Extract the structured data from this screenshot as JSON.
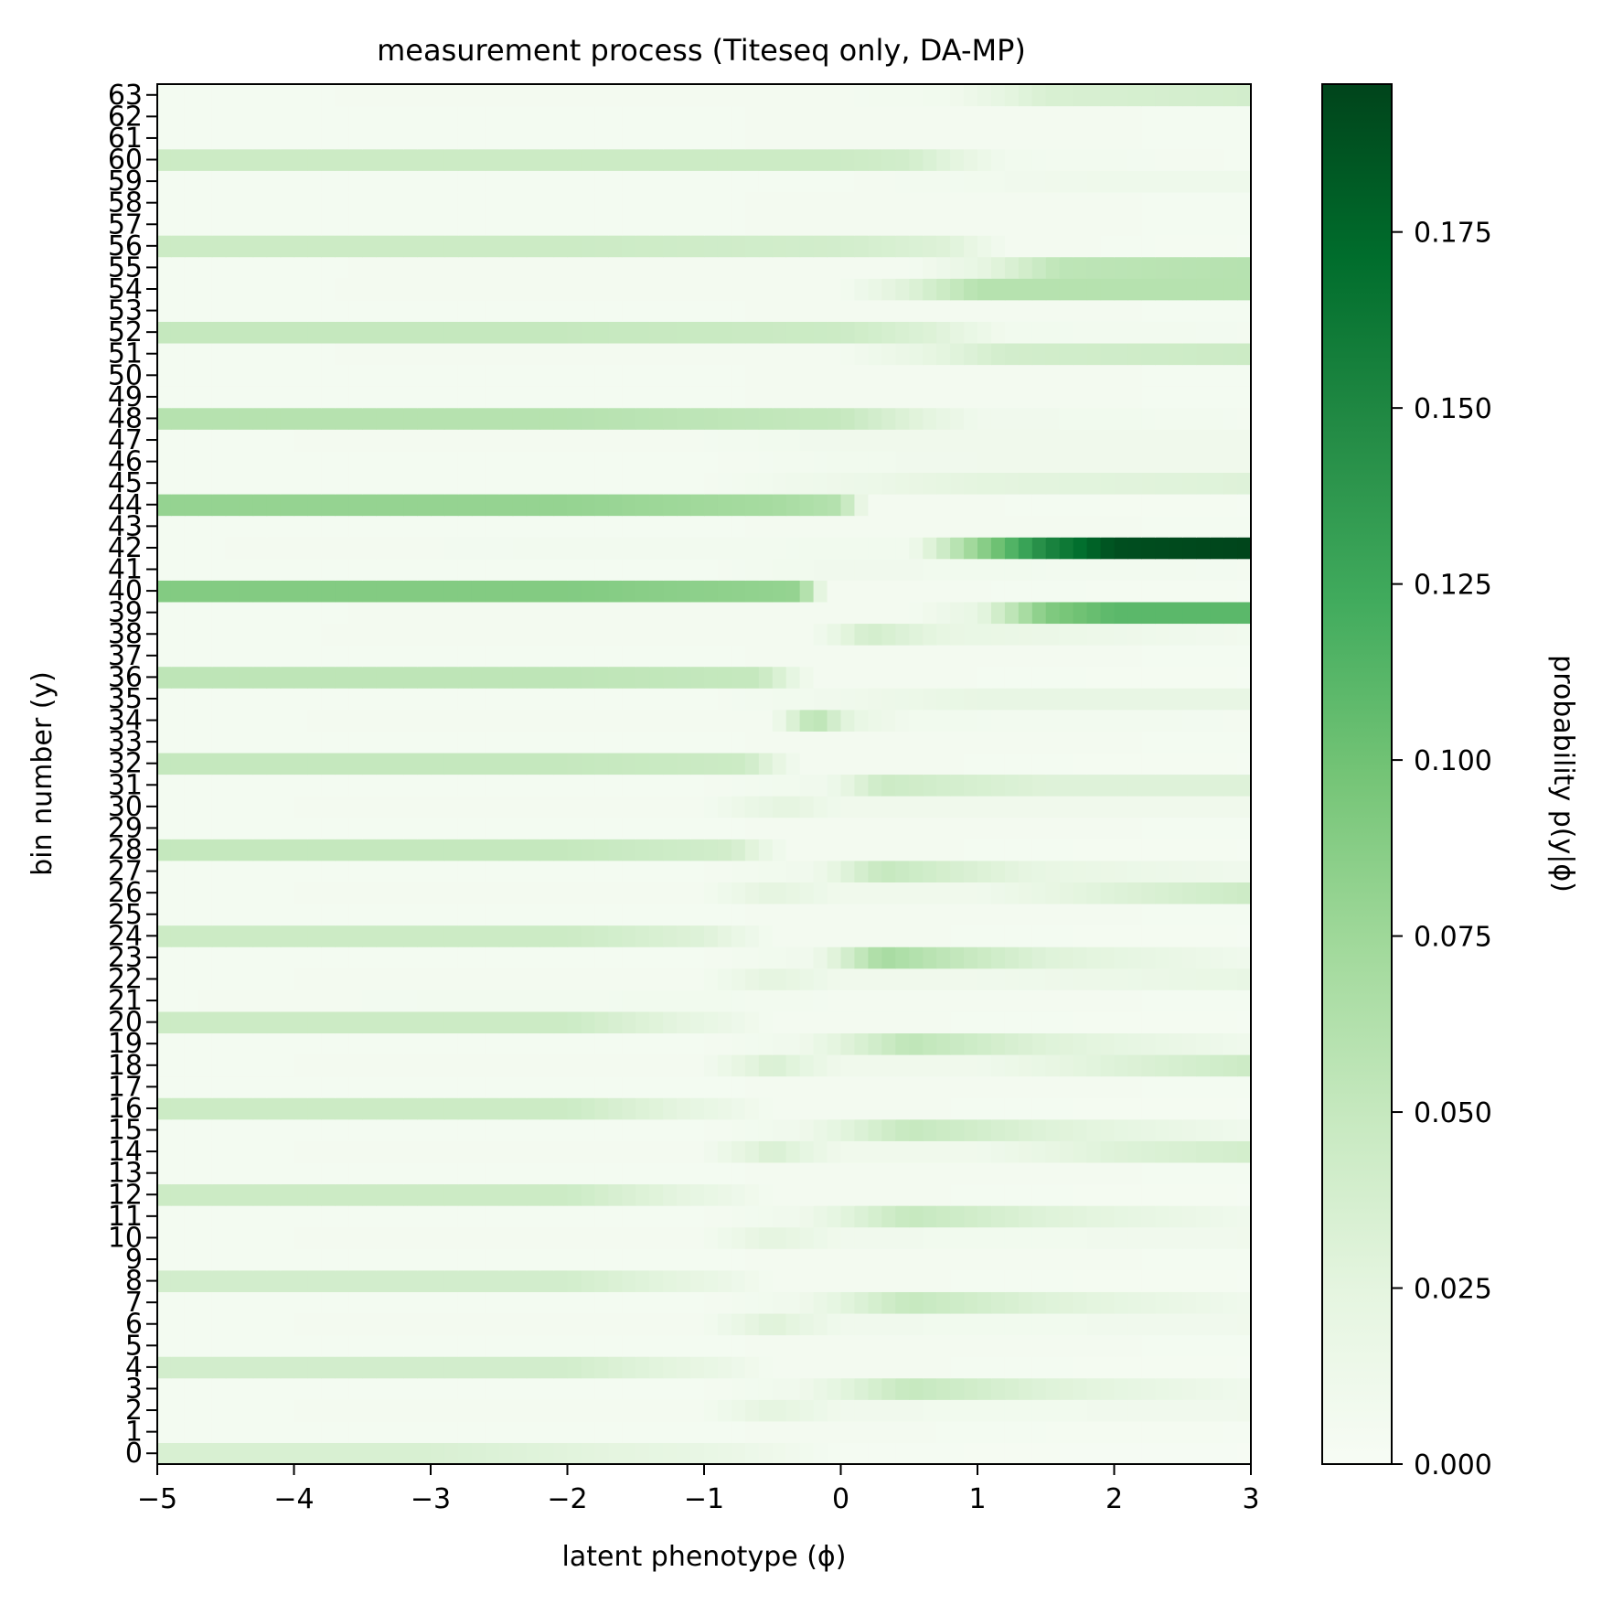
{
  "chart_data": {
    "type": "heatmap",
    "title": "measurement process (Titeseq only, DA-MP)",
    "xlabel": "latent phenotype (ϕ)",
    "ylabel": "bin number (y)",
    "xlim": [
      -5,
      3
    ],
    "ylim": [
      -0.5,
      63.5
    ],
    "x_ticks": [
      "−5",
      "−4",
      "−3",
      "−2",
      "−1",
      "0",
      "1",
      "2",
      "3"
    ],
    "x_tick_values": [
      -5,
      -4,
      -3,
      -2,
      -1,
      0,
      1,
      2,
      3
    ],
    "y_ticks": [
      "0",
      "1",
      "2",
      "3",
      "4",
      "5",
      "6",
      "7",
      "8",
      "9",
      "10",
      "11",
      "12",
      "13",
      "14",
      "15",
      "16",
      "17",
      "18",
      "19",
      "20",
      "21",
      "22",
      "23",
      "24",
      "25",
      "26",
      "27",
      "28",
      "29",
      "30",
      "31",
      "32",
      "33",
      "34",
      "35",
      "36",
      "37",
      "38",
      "39",
      "40",
      "41",
      "42",
      "43",
      "44",
      "45",
      "46",
      "47",
      "48",
      "49",
      "50",
      "51",
      "52",
      "53",
      "54",
      "55",
      "56",
      "57",
      "58",
      "59",
      "60",
      "61",
      "62",
      "63"
    ],
    "colormap": "Greens",
    "colorbar": {
      "label": "probability  p(y|ϕ)",
      "range": [
        0,
        0.196
      ],
      "ticks": [
        "0.000",
        "0.025",
        "0.050",
        "0.075",
        "0.100",
        "0.125",
        "0.150",
        "0.175"
      ],
      "tick_values": [
        0,
        0.025,
        0.05,
        0.075,
        0.1,
        0.125,
        0.15,
        0.175
      ]
    },
    "grid": false,
    "bins_profile": [
      {
        "bins": [
          0,
          4,
          8,
          12,
          16,
          20,
          24,
          28,
          32,
          36,
          40,
          44,
          48,
          52,
          56,
          60
        ],
        "description_values": "high at phi<-1"
      },
      {
        "bins": [
          1,
          2,
          3,
          5,
          6,
          7,
          9,
          10,
          11,
          13,
          14,
          15,
          17,
          18,
          19,
          21,
          22,
          23,
          25,
          26,
          27,
          29,
          30,
          31,
          33,
          34,
          35,
          37,
          38,
          39,
          41,
          42,
          43,
          45,
          46,
          47,
          49,
          50,
          51,
          53,
          54,
          55,
          57,
          58,
          59,
          61,
          62,
          63
        ]
      }
    ],
    "rows": [
      {
        "bin": 0,
        "phi": [
          -5,
          -3,
          -1,
          0,
          3
        ],
        "p": [
          0.035,
          0.035,
          0.02,
          0.004,
          0.002
        ]
      },
      {
        "bin": 1,
        "phi": [
          -5,
          -1,
          0,
          1,
          3
        ],
        "p": [
          0.005,
          0.005,
          0.006,
          0.005,
          0.004
        ]
      },
      {
        "bin": 2,
        "phi": [
          -5,
          -1,
          -0.5,
          0,
          1,
          3
        ],
        "p": [
          0.005,
          0.006,
          0.025,
          0.01,
          0.008,
          0.01
        ]
      },
      {
        "bin": 3,
        "phi": [
          -5,
          -1,
          -0.3,
          0.5,
          1.5,
          3
        ],
        "p": [
          0.005,
          0.005,
          0.01,
          0.05,
          0.03,
          0.01
        ]
      },
      {
        "bin": 4,
        "phi": [
          -5,
          -2,
          -1,
          -0.5,
          3
        ],
        "p": [
          0.04,
          0.04,
          0.02,
          0.006,
          0.004
        ]
      },
      {
        "bin": 5,
        "phi": [
          -5,
          -1,
          0,
          3
        ],
        "p": [
          0.005,
          0.005,
          0.006,
          0.005
        ]
      },
      {
        "bin": 6,
        "phi": [
          -5,
          -1,
          -0.5,
          0,
          1,
          3
        ],
        "p": [
          0.005,
          0.006,
          0.03,
          0.01,
          0.008,
          0.01
        ]
      },
      {
        "bin": 7,
        "phi": [
          -5,
          -1,
          -0.3,
          0.5,
          1.5,
          3
        ],
        "p": [
          0.005,
          0.005,
          0.01,
          0.05,
          0.03,
          0.01
        ]
      },
      {
        "bin": 8,
        "phi": [
          -5,
          -2,
          -1,
          -0.5,
          3
        ],
        "p": [
          0.04,
          0.04,
          0.02,
          0.006,
          0.004
        ]
      },
      {
        "bin": 9,
        "phi": [
          -5,
          -1,
          0,
          3
        ],
        "p": [
          0.005,
          0.005,
          0.006,
          0.005
        ]
      },
      {
        "bin": 10,
        "phi": [
          -5,
          -1,
          -0.5,
          0,
          1,
          3
        ],
        "p": [
          0.005,
          0.006,
          0.025,
          0.01,
          0.008,
          0.01
        ]
      },
      {
        "bin": 11,
        "phi": [
          -5,
          -1,
          -0.3,
          0.5,
          1.5,
          3
        ],
        "p": [
          0.005,
          0.005,
          0.01,
          0.05,
          0.03,
          0.01
        ]
      },
      {
        "bin": 12,
        "phi": [
          -5,
          -2,
          -1,
          -0.5,
          3
        ],
        "p": [
          0.045,
          0.045,
          0.02,
          0.006,
          0.004
        ]
      },
      {
        "bin": 13,
        "phi": [
          -5,
          -1,
          0,
          3
        ],
        "p": [
          0.005,
          0.005,
          0.006,
          0.005
        ]
      },
      {
        "bin": 14,
        "phi": [
          -5,
          -1,
          -0.5,
          0,
          1,
          2,
          3
        ],
        "p": [
          0.005,
          0.006,
          0.035,
          0.01,
          0.01,
          0.03,
          0.04
        ]
      },
      {
        "bin": 15,
        "phi": [
          -5,
          -1,
          -0.3,
          0.5,
          1.5,
          3
        ],
        "p": [
          0.005,
          0.005,
          0.01,
          0.05,
          0.03,
          0.01
        ]
      },
      {
        "bin": 16,
        "phi": [
          -5,
          -2,
          -1,
          -0.5,
          3
        ],
        "p": [
          0.045,
          0.045,
          0.02,
          0.006,
          0.004
        ]
      },
      {
        "bin": 17,
        "phi": [
          -5,
          -1,
          0,
          3
        ],
        "p": [
          0.005,
          0.005,
          0.006,
          0.005
        ]
      },
      {
        "bin": 18,
        "phi": [
          -5,
          -1,
          -0.5,
          0,
          1,
          2,
          3
        ],
        "p": [
          0.005,
          0.006,
          0.035,
          0.01,
          0.01,
          0.03,
          0.045
        ]
      },
      {
        "bin": 19,
        "phi": [
          -5,
          -1,
          -0.3,
          0.5,
          1.5,
          3
        ],
        "p": [
          0.005,
          0.005,
          0.01,
          0.055,
          0.03,
          0.01
        ]
      },
      {
        "bin": 20,
        "phi": [
          -5,
          -2,
          -1,
          -0.5,
          3
        ],
        "p": [
          0.045,
          0.045,
          0.02,
          0.006,
          0.004
        ]
      },
      {
        "bin": 21,
        "phi": [
          -5,
          -1,
          0,
          3
        ],
        "p": [
          0.005,
          0.008,
          0.006,
          0.005
        ]
      },
      {
        "bin": 22,
        "phi": [
          -5,
          -1,
          -0.5,
          0,
          1,
          3
        ],
        "p": [
          0.005,
          0.006,
          0.025,
          0.01,
          0.01,
          0.02
        ]
      },
      {
        "bin": 23,
        "phi": [
          -5,
          -1,
          -0.2,
          0.3,
          1.5,
          3
        ],
        "p": [
          0.005,
          0.005,
          0.01,
          0.07,
          0.03,
          0.01
        ]
      },
      {
        "bin": 24,
        "phi": [
          -5,
          -2,
          -1,
          -0.5,
          3
        ],
        "p": [
          0.045,
          0.045,
          0.03,
          0.006,
          0.004
        ]
      },
      {
        "bin": 25,
        "phi": [
          -5,
          -1,
          0,
          3
        ],
        "p": [
          0.005,
          0.005,
          0.006,
          0.005
        ]
      },
      {
        "bin": 26,
        "phi": [
          -5,
          -1,
          -0.5,
          0,
          1,
          2,
          3
        ],
        "p": [
          0.005,
          0.006,
          0.025,
          0.01,
          0.01,
          0.03,
          0.045
        ]
      },
      {
        "bin": 27,
        "phi": [
          -5,
          -1,
          -0.2,
          0.3,
          1.5,
          3
        ],
        "p": [
          0.005,
          0.005,
          0.01,
          0.05,
          0.02,
          0.01
        ]
      },
      {
        "bin": 28,
        "phi": [
          -5,
          -2,
          -0.8,
          -0.4,
          3
        ],
        "p": [
          0.05,
          0.05,
          0.04,
          0.006,
          0.004
        ]
      },
      {
        "bin": 29,
        "phi": [
          -5,
          -1,
          0,
          3
        ],
        "p": [
          0.005,
          0.005,
          0.006,
          0.005
        ]
      },
      {
        "bin": 30,
        "phi": [
          -5,
          -1,
          -0.4,
          0,
          1,
          3
        ],
        "p": [
          0.005,
          0.006,
          0.025,
          0.01,
          0.01,
          0.01
        ]
      },
      {
        "bin": 31,
        "phi": [
          -5,
          -1,
          -0.1,
          0.3,
          1.5,
          3
        ],
        "p": [
          0.005,
          0.005,
          0.01,
          0.045,
          0.03,
          0.03
        ]
      },
      {
        "bin": 32,
        "phi": [
          -5,
          -2,
          -0.7,
          -0.3,
          3
        ],
        "p": [
          0.05,
          0.05,
          0.045,
          0.006,
          0.004
        ]
      },
      {
        "bin": 33,
        "phi": [
          -5,
          -1,
          0,
          3
        ],
        "p": [
          0.005,
          0.005,
          0.006,
          0.005
        ]
      },
      {
        "bin": 34,
        "phi": [
          -5,
          -0.5,
          -0.2,
          0.1,
          0.5,
          3
        ],
        "p": [
          0.005,
          0.006,
          0.06,
          0.02,
          0.008,
          0.006
        ]
      },
      {
        "bin": 35,
        "phi": [
          -5,
          -1,
          0,
          1,
          3
        ],
        "p": [
          0.005,
          0.005,
          0.01,
          0.02,
          0.02
        ]
      },
      {
        "bin": 36,
        "phi": [
          -5,
          -2,
          -0.6,
          -0.2,
          3
        ],
        "p": [
          0.055,
          0.055,
          0.05,
          0.006,
          0.004
        ]
      },
      {
        "bin": 37,
        "phi": [
          -5,
          -1,
          0,
          3
        ],
        "p": [
          0.005,
          0.005,
          0.006,
          0.005
        ]
      },
      {
        "bin": 38,
        "phi": [
          -5,
          -0.2,
          0.2,
          0.8,
          3
        ],
        "p": [
          0.005,
          0.006,
          0.04,
          0.02,
          0.008
        ]
      },
      {
        "bin": 39,
        "phi": [
          -5,
          0.5,
          1,
          1.5,
          2,
          3
        ],
        "p": [
          0.005,
          0.006,
          0.02,
          0.09,
          0.11,
          0.11
        ]
      },
      {
        "bin": 40,
        "phi": [
          -5,
          -2,
          -0.3,
          -0.1,
          3
        ],
        "p": [
          0.09,
          0.09,
          0.08,
          0.006,
          0.004
        ]
      },
      {
        "bin": 41,
        "phi": [
          -5,
          -1,
          0,
          1,
          3
        ],
        "p": [
          0.005,
          0.005,
          0.01,
          0.008,
          0.006
        ]
      },
      {
        "bin": 42,
        "phi": [
          -5,
          0.5,
          1,
          1.5,
          2,
          3
        ],
        "p": [
          0.005,
          0.008,
          0.08,
          0.15,
          0.19,
          0.196
        ]
      },
      {
        "bin": 43,
        "phi": [
          -5,
          -1,
          0,
          3
        ],
        "p": [
          0.005,
          0.005,
          0.006,
          0.005
        ]
      },
      {
        "bin": 44,
        "phi": [
          -5,
          -2,
          -0.5,
          0,
          0.2,
          3
        ],
        "p": [
          0.08,
          0.08,
          0.07,
          0.06,
          0.006,
          0.004
        ]
      },
      {
        "bin": 45,
        "phi": [
          -5,
          -1,
          0.2,
          1,
          3
        ],
        "p": [
          0.005,
          0.005,
          0.015,
          0.025,
          0.03
        ]
      },
      {
        "bin": 46,
        "phi": [
          -5,
          -1,
          0,
          1,
          3
        ],
        "p": [
          0.005,
          0.005,
          0.008,
          0.01,
          0.01
        ]
      },
      {
        "bin": 47,
        "phi": [
          -5,
          -1,
          0,
          1,
          3
        ],
        "p": [
          0.005,
          0.006,
          0.01,
          0.01,
          0.01
        ]
      },
      {
        "bin": 48,
        "phi": [
          -5,
          -2,
          0,
          0.5,
          1,
          3
        ],
        "p": [
          0.06,
          0.06,
          0.05,
          0.03,
          0.01,
          0.006
        ]
      },
      {
        "bin": 49,
        "phi": [
          -5,
          -1,
          0,
          3
        ],
        "p": [
          0.005,
          0.005,
          0.006,
          0.005
        ]
      },
      {
        "bin": 50,
        "phi": [
          -5,
          -1,
          0,
          3
        ],
        "p": [
          0.005,
          0.005,
          0.006,
          0.005
        ]
      },
      {
        "bin": 51,
        "phi": [
          -5,
          0,
          0.6,
          1.2,
          3
        ],
        "p": [
          0.005,
          0.006,
          0.02,
          0.04,
          0.045
        ]
      },
      {
        "bin": 52,
        "phi": [
          -5,
          -2,
          0,
          0.7,
          1.2,
          3
        ],
        "p": [
          0.05,
          0.05,
          0.045,
          0.03,
          0.008,
          0.006
        ]
      },
      {
        "bin": 53,
        "phi": [
          -5,
          -1,
          0,
          3
        ],
        "p": [
          0.005,
          0.005,
          0.006,
          0.005
        ]
      },
      {
        "bin": 54,
        "phi": [
          -5,
          0,
          0.5,
          1,
          3
        ],
        "p": [
          0.005,
          0.006,
          0.03,
          0.06,
          0.06
        ]
      },
      {
        "bin": 55,
        "phi": [
          -5,
          0.5,
          1,
          1.6,
          3
        ],
        "p": [
          0.005,
          0.006,
          0.02,
          0.055,
          0.06
        ]
      },
      {
        "bin": 56,
        "phi": [
          -5,
          -2,
          0,
          0.8,
          1.2,
          3
        ],
        "p": [
          0.045,
          0.045,
          0.04,
          0.03,
          0.006,
          0.004
        ]
      },
      {
        "bin": 57,
        "phi": [
          -5,
          -1,
          0,
          3
        ],
        "p": [
          0.005,
          0.005,
          0.006,
          0.005
        ]
      },
      {
        "bin": 58,
        "phi": [
          -5,
          -1,
          0,
          3
        ],
        "p": [
          0.005,
          0.005,
          0.006,
          0.005
        ]
      },
      {
        "bin": 59,
        "phi": [
          -5,
          0,
          1,
          2,
          3
        ],
        "p": [
          0.005,
          0.005,
          0.008,
          0.012,
          0.012
        ]
      },
      {
        "bin": 60,
        "phi": [
          -5,
          -2,
          0,
          0.5,
          1.2,
          3
        ],
        "p": [
          0.045,
          0.045,
          0.045,
          0.04,
          0.008,
          0.005
        ]
      },
      {
        "bin": 61,
        "phi": [
          -5,
          -1,
          0,
          3
        ],
        "p": [
          0.005,
          0.005,
          0.006,
          0.005
        ]
      },
      {
        "bin": 62,
        "phi": [
          -5,
          -1,
          0,
          3
        ],
        "p": [
          0.005,
          0.005,
          0.006,
          0.005
        ]
      },
      {
        "bin": 63,
        "phi": [
          -5,
          0,
          0.8,
          1.5,
          3
        ],
        "p": [
          0.005,
          0.006,
          0.008,
          0.035,
          0.04
        ]
      }
    ]
  }
}
